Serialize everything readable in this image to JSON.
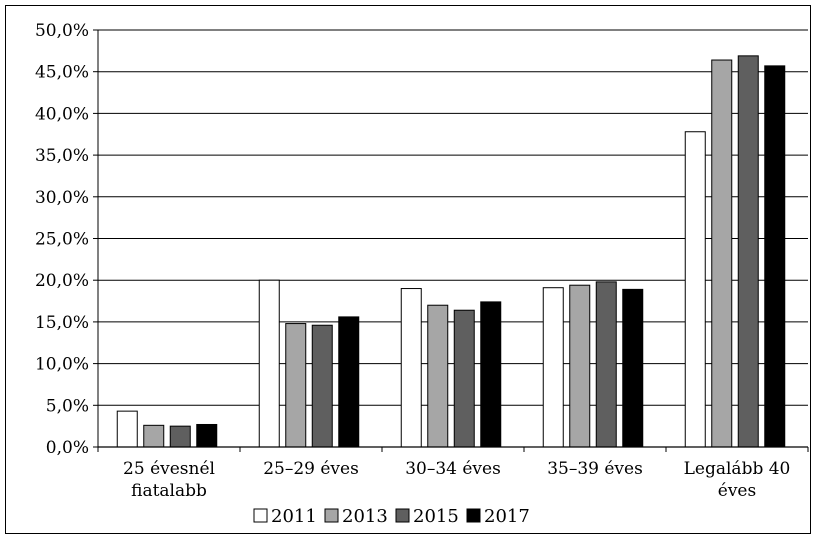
{
  "chart_data": {
    "type": "bar",
    "title": "",
    "xlabel": "",
    "ylabel": "",
    "ylim": [
      0,
      50
    ],
    "grid": "horizontal",
    "legend_position": "bottom",
    "y_ticks": [
      "0,0%",
      "5,0%",
      "10,0%",
      "15,0%",
      "20,0%",
      "25,0%",
      "30,0%",
      "35,0%",
      "40,0%",
      "45,0%",
      "50,0%"
    ],
    "categories": [
      [
        "25 évesnél",
        "fiatalabb"
      ],
      [
        "25–29 éves"
      ],
      [
        "30–34 éves"
      ],
      [
        "35–39 éves"
      ],
      [
        "Legalább 40",
        "éves"
      ]
    ],
    "series": [
      {
        "name": "2011",
        "color": "#ffffff",
        "values": [
          4.3,
          20.0,
          19.0,
          19.1,
          37.8
        ]
      },
      {
        "name": "2013",
        "color": "#a6a6a6",
        "values": [
          2.6,
          14.8,
          17.0,
          19.4,
          46.4
        ]
      },
      {
        "name": "2015",
        "color": "#5f5f5f",
        "values": [
          2.5,
          14.6,
          16.4,
          19.8,
          46.9
        ]
      },
      {
        "name": "2017",
        "color": "#000000",
        "values": [
          2.7,
          15.6,
          17.4,
          18.9,
          45.7
        ]
      }
    ]
  }
}
